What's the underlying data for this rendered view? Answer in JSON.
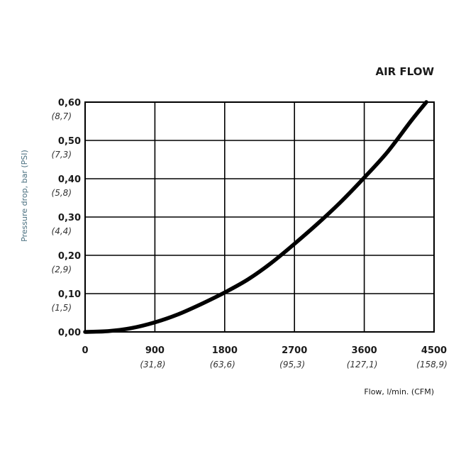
{
  "chart_data": {
    "type": "line",
    "title": "AIR FLOW",
    "xlabel": "Flow, l/min. (CFM)",
    "ylabel": "Pressure drop, bar (PSI)",
    "xlim": [
      0,
      4500
    ],
    "ylim": [
      0,
      0.6
    ],
    "grid": true,
    "x_ticks": [
      "0",
      "900",
      "1800",
      "2700",
      "3600",
      "4500"
    ],
    "x_ticks_alt": [
      "",
      "(31,8)",
      "(63,6)",
      "(95,3)",
      "(127,1)",
      "(158,9)"
    ],
    "y_ticks": [
      "0,00",
      "0,10",
      "0,20",
      "0,30",
      "0,40",
      "0,50",
      "0,60"
    ],
    "y_ticks_alt": [
      "",
      "(1,5)",
      "(2,9)",
      "(4,4)",
      "(5,8)",
      "(7,3)",
      "(8,7)"
    ],
    "series": [
      {
        "x": [
          0,
          300,
          600,
          900,
          1200,
          1500,
          1800,
          2100,
          2400,
          2700,
          3000,
          3300,
          3600,
          3900,
          4200,
          4400
        ],
        "y": [
          0,
          0.002,
          0.01,
          0.025,
          0.046,
          0.073,
          0.103,
          0.137,
          0.18,
          0.23,
          0.283,
          0.34,
          0.403,
          0.47,
          0.55,
          0.6
        ]
      }
    ],
    "colors": {
      "curve": "#000000",
      "grid": "#000000",
      "ylabel": "#4a6f7f"
    }
  }
}
